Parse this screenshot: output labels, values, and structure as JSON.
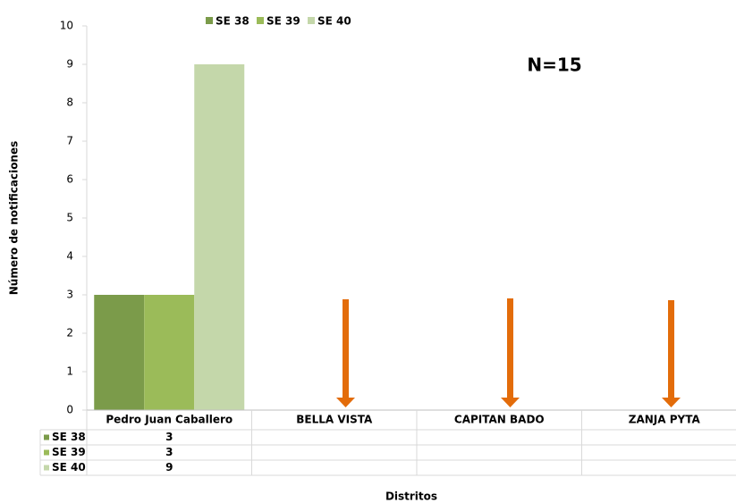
{
  "chart_data": {
    "type": "bar",
    "y_label": "Número de notificaciones",
    "x_label": "Distritos",
    "annotation": "N=15",
    "categories": [
      "Pedro Juan Caballero",
      "BELLA VISTA",
      "CAPITAN BADO",
      "ZANJA PYTA"
    ],
    "series": [
      {
        "name": "SE 38",
        "color": "#7b9b4a",
        "values": [
          3,
          null,
          null,
          null
        ]
      },
      {
        "name": "SE 39",
        "color": "#9bbb59",
        "values": [
          3,
          null,
          null,
          null
        ]
      },
      {
        "name": "SE 40",
        "color": "#c4d7aa",
        "values": [
          9,
          null,
          null,
          null
        ]
      }
    ],
    "ylim": [
      0,
      10
    ],
    "yticks": [
      0,
      1,
      2,
      3,
      4,
      5,
      6,
      7,
      8,
      9,
      10
    ],
    "grid": false
  }
}
